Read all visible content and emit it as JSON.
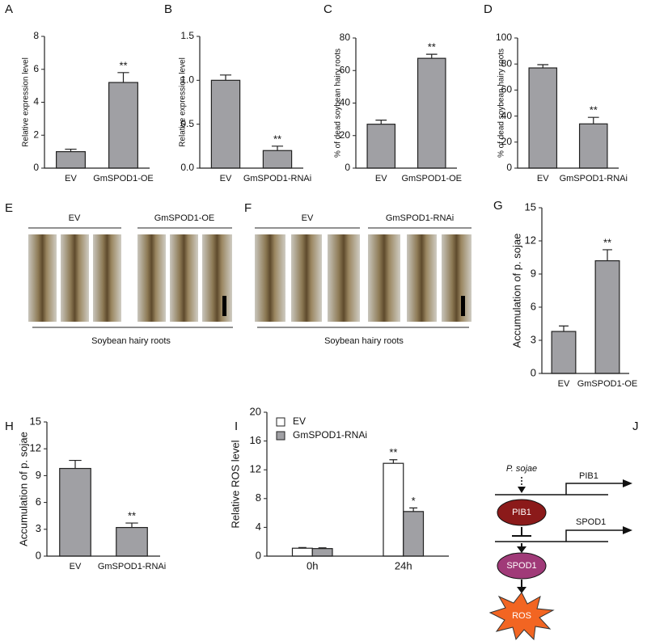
{
  "chart_data": [
    {
      "type": "bar",
      "label": "A",
      "ylabel": "Relative expression level",
      "categories": [
        "EV",
        "GmSPOD1-OE"
      ],
      "values": [
        1.0,
        5.2
      ],
      "errors": [
        0.15,
        0.6
      ],
      "significance": [
        null,
        "**"
      ],
      "color": "#a0a0a4",
      "ylim": [
        0,
        8
      ],
      "yticks": [
        0,
        2,
        4,
        6,
        8
      ]
    },
    {
      "type": "bar",
      "label": "B",
      "ylabel": "Relative expression level",
      "categories": [
        "EV",
        "GmSPOD1-RNAi"
      ],
      "values": [
        1.0,
        0.2
      ],
      "errors": [
        0.06,
        0.05
      ],
      "significance": [
        null,
        "**"
      ],
      "color": "#a0a0a4",
      "ylim": [
        0,
        1.5
      ],
      "yticks": [
        {
          "value": 0,
          "label": "0.0"
        },
        0.5,
        {
          "value": 1,
          "label": "1.0"
        },
        1.5
      ]
    },
    {
      "type": "bar",
      "label": "C",
      "ylabel": "% of dead soybean hairy roots",
      "categories": [
        "EV",
        "GmSPOD1-OE"
      ],
      "values": [
        27,
        67.5
      ],
      "errors": [
        2.5,
        2.5
      ],
      "significance": [
        null,
        "**"
      ],
      "color": "#a0a0a4",
      "ylim": [
        0,
        80
      ],
      "yticks": [
        0,
        20,
        40,
        60,
        80
      ]
    },
    {
      "type": "bar",
      "label": "D",
      "ylabel": "% of dead soybean hairy roots",
      "categories": [
        "EV",
        "GmSPOD1-RNAi"
      ],
      "values": [
        77,
        34
      ],
      "errors": [
        2.5,
        5
      ],
      "significance": [
        null,
        "**"
      ],
      "color": "#a0a0a4",
      "ylim": [
        0,
        100
      ],
      "yticks": [
        0,
        20,
        40,
        60,
        80,
        100
      ]
    },
    {
      "type": "bar",
      "label": "G",
      "ylabel": "Accumulation of  p. sojae",
      "categories": [
        "EV",
        "GmSPOD1-OE"
      ],
      "values": [
        3.8,
        10.2
      ],
      "errors": [
        0.5,
        1.0
      ],
      "significance": [
        null,
        "**"
      ],
      "color": "#a0a0a4",
      "ylim": [
        0,
        15
      ],
      "yticks": [
        0,
        3,
        6,
        9,
        12,
        15
      ]
    },
    {
      "type": "bar",
      "label": "H",
      "ylabel": "Accumulation of  p. sojae",
      "categories": [
        "EV",
        "GmSPOD1-RNAi"
      ],
      "values": [
        9.8,
        3.2
      ],
      "errors": [
        0.9,
        0.5
      ],
      "significance": [
        null,
        "**"
      ],
      "color": "#a0a0a4",
      "ylim": [
        0,
        15
      ],
      "yticks": [
        0,
        3,
        6,
        9,
        12,
        15
      ]
    },
    {
      "type": "grouped-bar",
      "label": "I",
      "ylabel": "Relative ROS level",
      "categories": [
        "0h",
        "24h"
      ],
      "legend": "upper left",
      "ylim": [
        0,
        20
      ],
      "yticks": [
        0,
        4,
        8,
        12,
        16,
        20
      ],
      "series": [
        {
          "name": "EV",
          "color": "#ffffff",
          "values": [
            1.1,
            12.9
          ],
          "errors": [
            0.1,
            0.5
          ],
          "significance": [
            null,
            "**"
          ]
        },
        {
          "name": "GmSPOD1-RNAi",
          "color": "#a0a0a4",
          "values": [
            1.05,
            6.2
          ],
          "errors": [
            0.1,
            0.5
          ],
          "significance": [
            null,
            "*"
          ]
        }
      ]
    }
  ],
  "photo_panels": [
    {
      "label": "E",
      "groups": [
        "EV",
        "GmSPOD1-OE"
      ],
      "caption": "Soybean hairy roots"
    },
    {
      "label": "F",
      "groups": [
        "EV",
        "GmSPOD1-RNAi"
      ],
      "caption": "Soybean hairy roots"
    }
  ],
  "diagram": {
    "label": "J",
    "pathogen": "P. sojae",
    "promoter_1": "PIB1",
    "protein_1": "PIB1",
    "promoter_2": "SPOD1",
    "protein_2": "SPOD1",
    "product": "ROS"
  }
}
